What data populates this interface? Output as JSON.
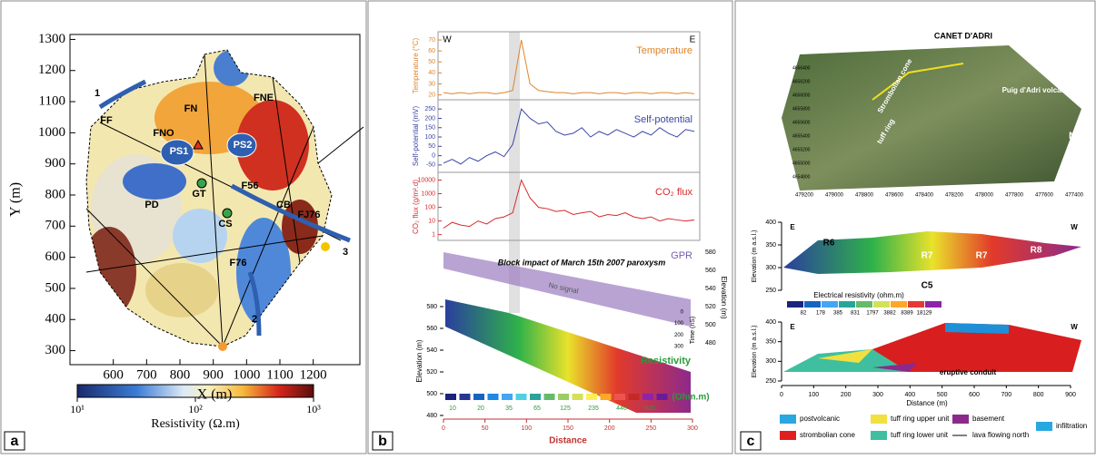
{
  "panels": {
    "a": {
      "letter": "a",
      "x_axis_label": "X (m)",
      "y_axis_label": "Y (m)",
      "xlim": [
        470,
        1340
      ],
      "ylim": [
        255,
        1310
      ],
      "xticks": [
        600,
        700,
        800,
        900,
        1000,
        1100,
        1200
      ],
      "yticks": [
        300,
        400,
        500,
        600,
        700,
        800,
        900,
        1000,
        1100,
        1200,
        1300
      ],
      "map_labels": [
        "1",
        "FF",
        "FN",
        "FNE",
        "FNO",
        "PS1",
        "PS2",
        "GT",
        "PD",
        "F56",
        "CB",
        "FJ76",
        "CS",
        "F76",
        "3",
        "2"
      ],
      "colorbar": {
        "label": "Resistivity (Ω.m)",
        "lim": [
          10,
          1000
        ],
        "log": true,
        "ticks": [
          {
            "value": 10,
            "label": "10¹"
          },
          {
            "value": 100,
            "label": "10²"
          },
          {
            "value": 1000,
            "label": "10³"
          }
        ]
      }
    },
    "b": {
      "letter": "b",
      "west": "W",
      "east": "E",
      "profiles": [
        {
          "name": "Temperature",
          "axis_label": "Temperature (°C)",
          "color": "#e0832a",
          "log": false,
          "lim": [
            18,
            75
          ],
          "ticks": [
            20,
            30,
            40,
            50,
            60,
            70
          ],
          "values": [
            22,
            21,
            22,
            21,
            22,
            22,
            21,
            22,
            24,
            70,
            30,
            24,
            23,
            22,
            22,
            21,
            22,
            22,
            21,
            22,
            22,
            21,
            22,
            22,
            21,
            22,
            22,
            21,
            22,
            21
          ]
        },
        {
          "name": "Self-potential",
          "axis_label": "Self-potential (mV)",
          "color": "#3a46a6",
          "log": false,
          "lim": [
            -70,
            280
          ],
          "ticks": [
            -50,
            0,
            50,
            100,
            150,
            200,
            250
          ],
          "values": [
            -40,
            -20,
            -45,
            -10,
            -30,
            0,
            20,
            -5,
            60,
            250,
            200,
            170,
            180,
            130,
            110,
            120,
            150,
            100,
            130,
            110,
            140,
            120,
            100,
            130,
            110,
            150,
            120,
            100,
            140,
            130
          ]
        },
        {
          "name": "CO₂ flux",
          "axis_label": "CO₂ flux (g/m².d)",
          "color": "#d8282a",
          "log": true,
          "lim": [
            0.6,
            20000
          ],
          "ticks": [
            1,
            10,
            100,
            1000,
            10000
          ],
          "values": [
            3,
            8,
            5,
            4,
            10,
            6,
            15,
            20,
            40,
            10000,
            500,
            100,
            80,
            50,
            60,
            30,
            40,
            50,
            20,
            30,
            25,
            40,
            20,
            15,
            20,
            10,
            15,
            12,
            10,
            12
          ]
        }
      ],
      "gpr_title": "GPR",
      "resistivity_title": "Resistivity",
      "annotation": "Block impact of March 15th 2007 paroxysm",
      "no_signal": "No signal",
      "elevation_label": "Elevation (m)",
      "elevation_ticks": [
        480,
        500,
        520,
        540,
        560,
        580
      ],
      "time_label": "Time (nS)",
      "time_ticks": [
        0,
        100,
        200,
        300
      ],
      "scale_label": "(Ohm.m)",
      "scale_ticks": [
        10,
        20,
        35,
        65,
        125,
        235,
        440,
        820
      ],
      "distance_label": "Distance",
      "distance_ticks": [
        0,
        50,
        100,
        150,
        200,
        250,
        300
      ]
    },
    "c": {
      "letter": "c",
      "title": "CANET D'ADRI",
      "photo_labels": [
        "Strombolian cone",
        "tuff ring",
        "Puig d'Adri volcano",
        "N"
      ],
      "eastings": [
        "479200",
        "479000",
        "478800",
        "478600",
        "478400",
        "478200",
        "478000",
        "477800",
        "477600",
        "477400"
      ],
      "northings": [
        "4656400",
        "4656200",
        "4656000",
        "4655800",
        "4655600",
        "4655400",
        "4655200",
        "4655000",
        "4654800"
      ],
      "section1": {
        "east": "E",
        "west": "W",
        "y_label": "Elevation (m a.s.l.)",
        "yticks": [
          250,
          300,
          350,
          400
        ],
        "labels": [
          "R6",
          "R7",
          "R7",
          "R8",
          "C5"
        ],
        "scale_label": "Electrical resistivity (ohm.m)",
        "scale_ticks": [
          82,
          178,
          385,
          831,
          1797,
          3882,
          8389,
          18129
        ]
      },
      "section2": {
        "east": "E",
        "west": "W",
        "y_label": "Elevation (m a.s.l.)",
        "yticks": [
          250,
          300,
          350,
          400
        ],
        "conduit": "eruptive conduit",
        "x_label": "Distance (m)",
        "xticks": [
          0,
          100,
          200,
          300,
          400,
          500,
          600,
          700,
          800,
          900
        ]
      },
      "legend": [
        "postvolcanic",
        "strombolian cone",
        "tuff ring upper unit",
        "tuff ring lower unit",
        "basement",
        "lava flowing north",
        "infiltration"
      ]
    }
  }
}
